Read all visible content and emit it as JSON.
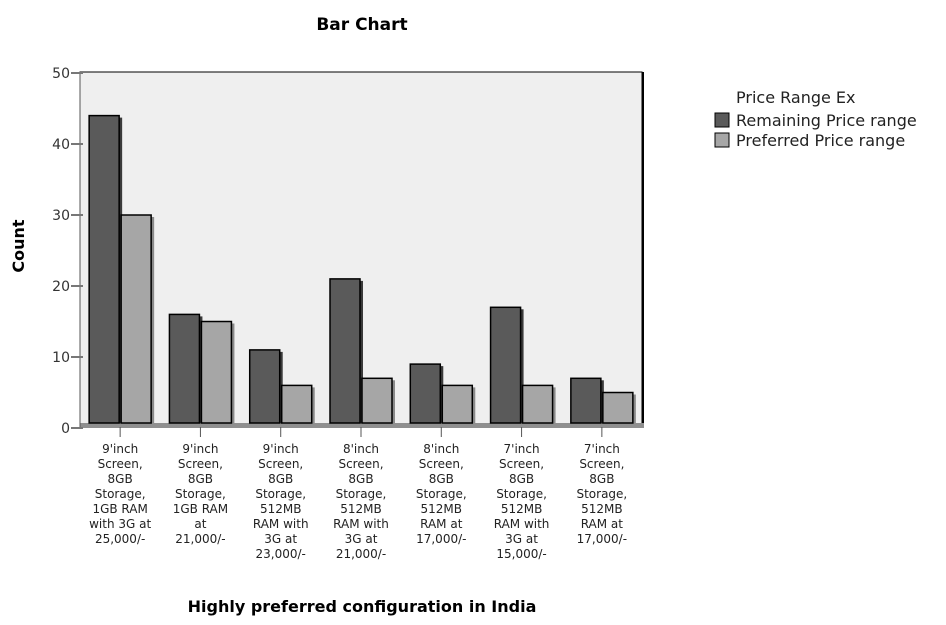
{
  "chart_data": {
    "type": "bar",
    "title": "Bar Chart",
    "xlabel": "Highly preferred configuration in India",
    "ylabel": "Count",
    "ylim": [
      0,
      50
    ],
    "yticks": [
      0,
      10,
      20,
      30,
      40,
      50
    ],
    "grid": false,
    "legend": {
      "title": "Price Range Ex",
      "placement": "top-right, outside plot"
    },
    "categories": [
      [
        "9'inch",
        "Screen,",
        "8GB",
        "Storage,",
        "1GB RAM",
        "with 3G at",
        "25,000/-"
      ],
      [
        "9'inch",
        "Screen,",
        "8GB",
        "Storage,",
        "1GB RAM",
        "at",
        "21,000/-"
      ],
      [
        "9'inch",
        "Screen,",
        "8GB",
        "Storage,",
        "512MB",
        "RAM with",
        "3G at",
        "23,000/-"
      ],
      [
        "8'inch",
        "Screen,",
        "8GB",
        "Storage,",
        "512MB",
        "RAM with",
        "3G at",
        "21,000/-"
      ],
      [
        "8'inch",
        "Screen,",
        "8GB",
        "Storage,",
        "512MB",
        "RAM at",
        "17,000/-"
      ],
      [
        "7'inch",
        "Screen,",
        "8GB",
        "Storage,",
        "512MB",
        "RAM with",
        "3G at",
        "15,000/-"
      ],
      [
        "7'inch",
        "Screen,",
        "8GB",
        "Storage,",
        "512MB",
        "RAM at",
        "17,000/-"
      ]
    ],
    "series": [
      {
        "name": "Remaining Price range",
        "color": "#5a5a5a",
        "values": [
          44,
          16,
          11,
          21,
          9,
          17,
          7
        ]
      },
      {
        "name": "Preferred Price range",
        "color": "#a6a6a6",
        "values": [
          30,
          15,
          6,
          7,
          6,
          6,
          5
        ]
      }
    ],
    "plot_background": "#efefef"
  }
}
